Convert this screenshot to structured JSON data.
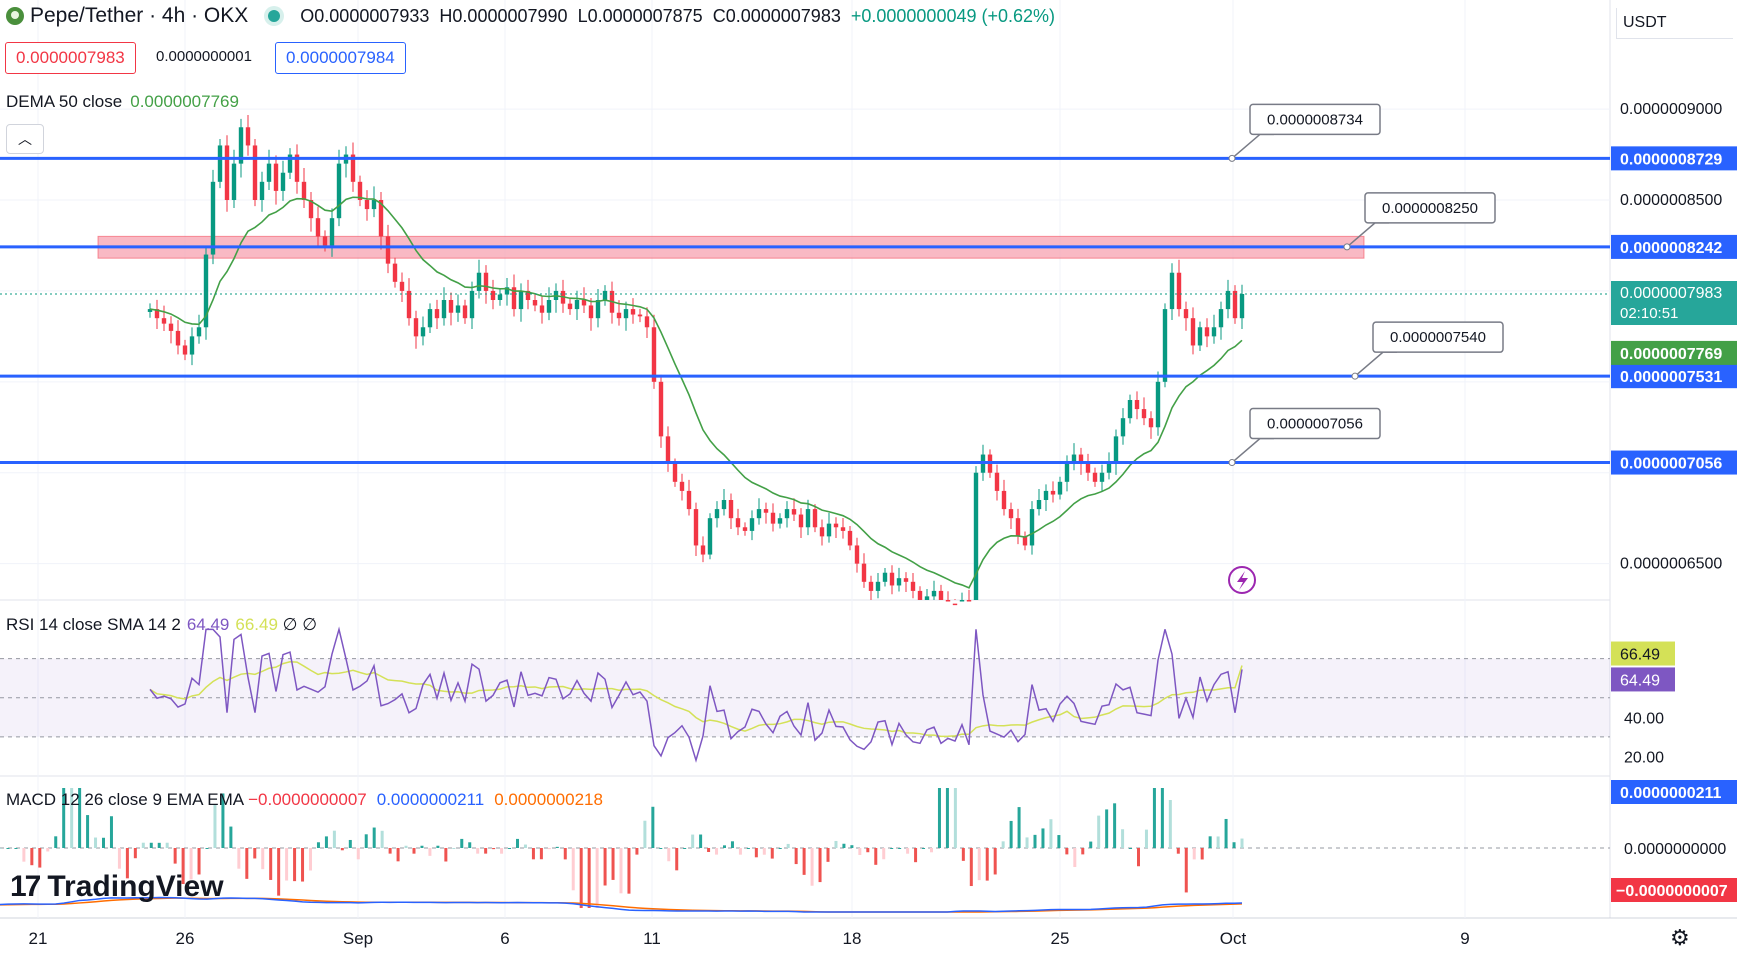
{
  "header": {
    "title": "Pepe/Tether · 4h · OKX",
    "open": "O0.0000007933",
    "high": "H0.0000007990",
    "low": "L0.0000007875",
    "close": "C0.0000007983",
    "change": "+0.0000000049 (+0.62%)"
  },
  "price_boxes": {
    "sell": "0.0000007983",
    "spread": "0.0000000001",
    "buy": "0.0000007984"
  },
  "dema_legend": {
    "label": "DEMA 50 close",
    "value": "0.0000007769"
  },
  "currency": "USDT",
  "rsi_legend": {
    "label": "RSI 14 close SMA 14 2",
    "rsi": "64.49",
    "sma": "66.49",
    "extra": "∅ ∅"
  },
  "macd_legend": {
    "label": "MACD 12 26 close 9 EMA EMA",
    "hist": "−0.0000000007",
    "macd": "0.0000000211",
    "signal": "0.0000000218"
  },
  "watermark": "TradingView",
  "colors": {
    "up": "#089981",
    "down": "#f23645",
    "hline": "#2962ff",
    "zone": "#f7a1b0",
    "dema": "#43a047",
    "rsi": "#7e57c2",
    "rsi_sma": "#d4e157",
    "macd": "#2962ff",
    "signal": "#ff6d00"
  },
  "chart_data": {
    "type": "candlestick",
    "timeframe": "4h",
    "x_ticks": [
      "21",
      "26",
      "Sep",
      "6",
      "11",
      "18",
      "25",
      "Oct",
      "9"
    ],
    "y_ticks": [
      "0.0000009000",
      "0.0000008500",
      "0.0000006500"
    ],
    "ylim": [
      6.3e-07,
      9.6e-07
    ],
    "last_price": 7.983e-07,
    "countdown": "02:10:51",
    "dema_last": 7.769e-07,
    "horizontal_lines": [
      {
        "value": "0.0000008729",
        "note": "0.0000008734",
        "num": 8.729e-07
      },
      {
        "value": "0.0000008242",
        "note": "0.0000008250",
        "num": 8.242e-07
      },
      {
        "value": "0.0000007531",
        "note": "0.0000007540",
        "num": 7.531e-07
      },
      {
        "value": "0.0000007056",
        "note": "0.0000007056",
        "num": 7.056e-07
      }
    ],
    "resistance_zone": [
      8.18e-07,
      8.3e-07
    ],
    "closes": [
      7.9e-07,
      7.85e-07,
      7.82e-07,
      7.78e-07,
      7.7e-07,
      7.65e-07,
      7.75e-07,
      7.8e-07,
      8.2e-07,
      8.6e-07,
      8.8e-07,
      8.5e-07,
      8.7e-07,
      8.9e-07,
      8.8e-07,
      8.5e-07,
      8.6e-07,
      8.7e-07,
      8.55e-07,
      8.65e-07,
      8.75e-07,
      8.6e-07,
      8.5e-07,
      8.4e-07,
      8.3e-07,
      8.25e-07,
      8.4e-07,
      8.7e-07,
      8.75e-07,
      8.6e-07,
      8.5e-07,
      8.45e-07,
      8.5e-07,
      8.3e-07,
      8.15e-07,
      8.05e-07,
      8e-07,
      7.85e-07,
      7.75e-07,
      7.8e-07,
      7.9e-07,
      7.85e-07,
      7.95e-07,
      7.88e-07,
      7.92e-07,
      7.85e-07,
      8e-07,
      8.1e-07,
      8e-07,
      7.95e-07,
      7.98e-07,
      8.02e-07,
      7.9e-07,
      8e-07,
      7.95e-07,
      7.92e-07,
      7.88e-07,
      7.95e-07,
      8e-07,
      7.93e-07,
      7.9e-07,
      7.95e-07,
      7.92e-07,
      7.85e-07,
      7.95e-07,
      8e-07,
      7.88e-07,
      7.85e-07,
      7.9e-07,
      7.87e-07,
      7.86e-07,
      7.8e-07,
      7.5e-07,
      7.2e-07,
      7.05e-07,
      6.95e-07,
      6.9e-07,
      6.8e-07,
      6.6e-07,
      6.55e-07,
      6.75e-07,
      6.8e-07,
      6.85e-07,
      6.75e-07,
      6.7e-07,
      6.68e-07,
      6.75e-07,
      6.8e-07,
      6.78e-07,
      6.72e-07,
      6.75e-07,
      6.8e-07,
      6.77e-07,
      6.7e-07,
      6.8e-07,
      6.7e-07,
      6.65e-07,
      6.72e-07,
      6.7e-07,
      6.68e-07,
      6.6e-07,
      6.5e-07,
      6.4e-07,
      6.35e-07,
      6.4e-07,
      6.45e-07,
      6.38e-07,
      6.42e-07,
      6.4e-07,
      6.35e-07,
      6.3e-07,
      6.32e-07,
      6.35e-07,
      6.3e-07,
      6.28e-07,
      6.25e-07,
      6.3e-07,
      6.25e-07,
      7e-07,
      7.1e-07,
      7e-07,
      6.9e-07,
      6.8e-07,
      6.75e-07,
      6.65e-07,
      6.6e-07,
      6.8e-07,
      6.85e-07,
      6.9e-07,
      6.88e-07,
      6.95e-07,
      7.05e-07,
      7.1e-07,
      7.05e-07,
      7e-07,
      6.95e-07,
      7e-07,
      7.05e-07,
      7.2e-07,
      7.3e-07,
      7.4e-07,
      7.35e-07,
      7.3e-07,
      7.25e-07,
      7.5e-07,
      7.9e-07,
      8.1e-07,
      7.9e-07,
      7.85e-07,
      7.7e-07,
      7.8e-07,
      7.75e-07,
      7.8e-07,
      7.9e-07,
      8e-07,
      7.85e-07,
      7.983e-07
    ],
    "rsi": {
      "level_upper": 70,
      "level_mid": 50,
      "level_lower": 30,
      "y_ticks": [
        "40.00",
        "20.00"
      ],
      "last_rsi": 64.49,
      "last_sma": 66.49
    },
    "macd": {
      "y_ticks": [
        "0.0000000000"
      ],
      "macd_last": "0.0000000211",
      "signal_last": "0.0000000218",
      "hist_last": "−0.0000000007"
    }
  }
}
